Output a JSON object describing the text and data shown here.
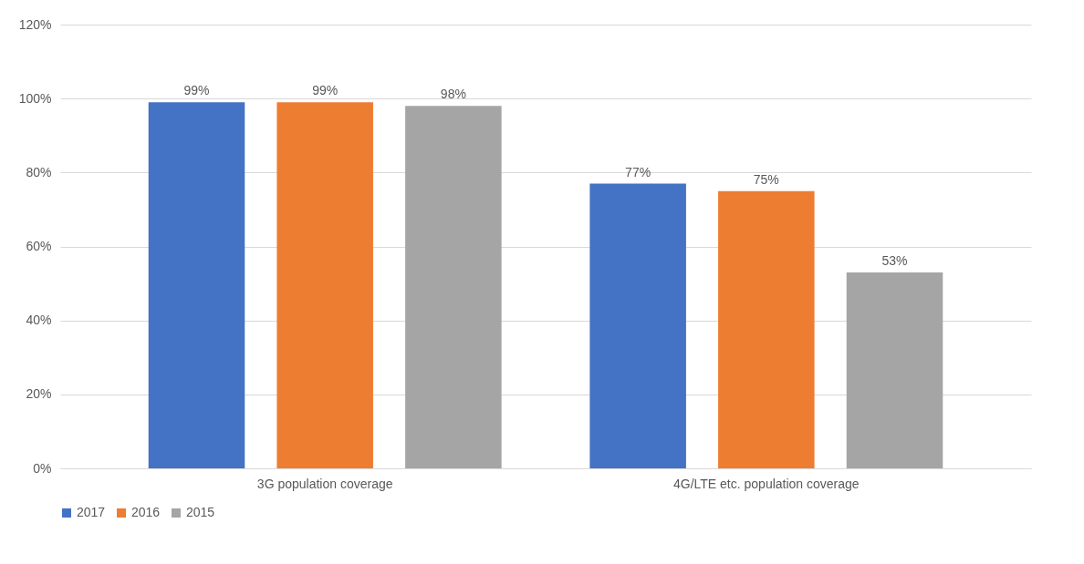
{
  "chart_data": {
    "type": "bar",
    "categories": [
      "3G population coverage",
      "4G/LTE etc. population coverage"
    ],
    "series": [
      {
        "name": "2017",
        "color": "#4472c4",
        "values": [
          99,
          77
        ],
        "value_labels": [
          "99%",
          "77%"
        ]
      },
      {
        "name": "2016",
        "color": "#ed7d31",
        "values": [
          99,
          75
        ],
        "value_labels": [
          "99%",
          "75%"
        ]
      },
      {
        "name": "2015",
        "color": "#a5a5a5",
        "values": [
          98,
          53
        ],
        "value_labels": [
          "98%",
          "53%"
        ]
      }
    ],
    "ylim": [
      0,
      120
    ],
    "yticks": [
      {
        "value": 0,
        "label": "0%"
      },
      {
        "value": 20,
        "label": "20%"
      },
      {
        "value": 40,
        "label": "40%"
      },
      {
        "value": 60,
        "label": "60%"
      },
      {
        "value": 80,
        "label": "80%"
      },
      {
        "value": 100,
        "label": "100%"
      },
      {
        "value": 120,
        "label": "120%"
      }
    ],
    "grid": "y",
    "legend": "bottom"
  }
}
